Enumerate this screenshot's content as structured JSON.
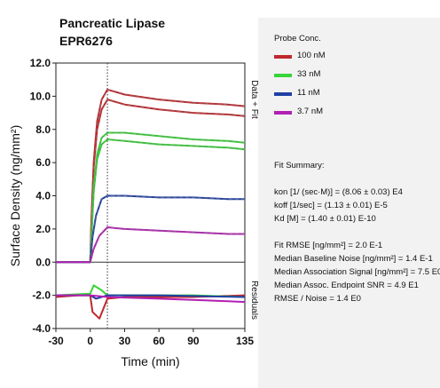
{
  "title": "Pancreatic Lipase",
  "subtitle": "EPR6276",
  "legend": {
    "title": "Probe Conc.",
    "items": [
      {
        "label": "100 nM",
        "color": "#c0272d"
      },
      {
        "label": "33 nM",
        "color": "#39d43a"
      },
      {
        "label": "11 nM",
        "color": "#1f3fa6"
      },
      {
        "label": "3.7 nM",
        "color": "#b31fb3"
      }
    ]
  },
  "fit_summary": {
    "title": "Fit Summary:",
    "lines": [
      "kon  [1/ (sec·M)]  =   (8.06 ± 0.03) E4",
      "koff  [1/sec]  =   (1.13 ± 0.01) E-5",
      "Kd  [M]  =   (1.40 ± 0.01) E-10"
    ]
  },
  "stats": {
    "lines": [
      "Fit RMSE [ng/mm²]  =  2.0 E-1",
      "Median Baseline Noise [ng/mm²]  =  1.4 E-1",
      "Median Association Signal [ng/mm²]  =  7.5 E0",
      "Median Assoc. Endpoint SNR  =  4.9 E1",
      "RMSE / Noise  =  1.4 E0"
    ]
  },
  "chart_data": {
    "type": "line",
    "xlabel": "Time (min)",
    "ylabel": "Surface Density (ng/mm²)",
    "xlim": [
      -30,
      135
    ],
    "ylim": [
      -4.0,
      12.0
    ],
    "x_ticks": [
      "-30",
      "0",
      "30",
      "60",
      "90",
      "135"
    ],
    "y_ticks": [
      "12.0",
      "10.0",
      "8.0",
      "6.0",
      "4.0",
      "2.0",
      "0.0",
      "-2.0",
      "-4.0"
    ],
    "grid": false,
    "right_labels": {
      "upper": "Data + Fit",
      "lower": "Residuals"
    },
    "vertical_marker_x": 15,
    "zero_line": 0,
    "series": [
      {
        "name": "100 nM",
        "color": "#c0272d",
        "data_upper": [
          [
            -30,
            0.0
          ],
          [
            0,
            0.0
          ],
          [
            1,
            2.5
          ],
          [
            3,
            6.0
          ],
          [
            6,
            8.5
          ],
          [
            10,
            9.8
          ],
          [
            15,
            10.4
          ],
          [
            30,
            10.1
          ],
          [
            60,
            9.8
          ],
          [
            90,
            9.6
          ],
          [
            120,
            9.5
          ],
          [
            135,
            9.4
          ]
        ],
        "data_lower": [
          [
            -30,
            0.0
          ],
          [
            0,
            0.0
          ],
          [
            1,
            2.3
          ],
          [
            3,
            5.7
          ],
          [
            6,
            8.0
          ],
          [
            10,
            9.2
          ],
          [
            15,
            9.8
          ],
          [
            30,
            9.5
          ],
          [
            60,
            9.2
          ],
          [
            90,
            9.0
          ],
          [
            120,
            8.9
          ],
          [
            135,
            8.8
          ]
        ]
      },
      {
        "name": "33 nM",
        "color": "#39d43a",
        "data_upper": [
          [
            -30,
            0.0
          ],
          [
            0,
            0.0
          ],
          [
            1,
            1.5
          ],
          [
            3,
            4.5
          ],
          [
            6,
            6.5
          ],
          [
            10,
            7.5
          ],
          [
            15,
            7.8
          ],
          [
            30,
            7.8
          ],
          [
            60,
            7.6
          ],
          [
            90,
            7.4
          ],
          [
            120,
            7.3
          ],
          [
            135,
            7.2
          ]
        ],
        "data_lower": [
          [
            -30,
            0.0
          ],
          [
            0,
            0.0
          ],
          [
            1,
            1.4
          ],
          [
            3,
            4.2
          ],
          [
            6,
            6.2
          ],
          [
            10,
            7.1
          ],
          [
            15,
            7.4
          ],
          [
            30,
            7.3
          ],
          [
            60,
            7.1
          ],
          [
            90,
            7.0
          ],
          [
            120,
            6.9
          ],
          [
            135,
            6.8
          ]
        ]
      },
      {
        "name": "11 nM",
        "color": "#1f3fa6",
        "data_upper": [
          [
            -30,
            0.0
          ],
          [
            0,
            0.0
          ],
          [
            2,
            1.5
          ],
          [
            5,
            2.8
          ],
          [
            10,
            3.8
          ],
          [
            15,
            4.0
          ],
          [
            30,
            4.0
          ],
          [
            60,
            3.9
          ],
          [
            90,
            3.9
          ],
          [
            120,
            3.8
          ],
          [
            135,
            3.8
          ]
        ]
      },
      {
        "name": "3.7 nM",
        "color": "#b31fb3",
        "data_upper": [
          [
            -30,
            0.0
          ],
          [
            0,
            0.0
          ],
          [
            3,
            0.8
          ],
          [
            8,
            1.6
          ],
          [
            15,
            2.1
          ],
          [
            30,
            2.0
          ],
          [
            60,
            1.9
          ],
          [
            90,
            1.8
          ],
          [
            120,
            1.7
          ],
          [
            135,
            1.7
          ]
        ]
      }
    ],
    "residuals": [
      {
        "name": "100 nM",
        "color": "#c0272d",
        "data": [
          [
            -30,
            -2.1
          ],
          [
            -10,
            -2.0
          ],
          [
            0,
            -2.0
          ],
          [
            2,
            -3.0
          ],
          [
            8,
            -3.4
          ],
          [
            15,
            -2.2
          ],
          [
            30,
            -2.1
          ],
          [
            60,
            -2.1
          ],
          [
            90,
            -2.1
          ],
          [
            135,
            -2.0
          ]
        ]
      },
      {
        "name": "33 nM",
        "color": "#39d43a",
        "data": [
          [
            -30,
            -2.0
          ],
          [
            0,
            -1.9
          ],
          [
            3,
            -1.4
          ],
          [
            10,
            -1.7
          ],
          [
            15,
            -2.0
          ],
          [
            30,
            -2.0
          ],
          [
            60,
            -2.0
          ],
          [
            90,
            -2.0
          ],
          [
            135,
            -2.1
          ]
        ]
      },
      {
        "name": "11 nM",
        "color": "#1f3fa6",
        "data": [
          [
            -30,
            -2.0
          ],
          [
            0,
            -2.0
          ],
          [
            5,
            -2.2
          ],
          [
            15,
            -2.0
          ],
          [
            60,
            -2.0
          ],
          [
            135,
            -2.1
          ]
        ]
      },
      {
        "name": "3.7 nM",
        "color": "#b31fb3",
        "data": [
          [
            -30,
            -2.0
          ],
          [
            0,
            -2.0
          ],
          [
            15,
            -2.1
          ],
          [
            60,
            -2.2
          ],
          [
            100,
            -2.3
          ],
          [
            135,
            -2.4
          ]
        ]
      }
    ]
  }
}
